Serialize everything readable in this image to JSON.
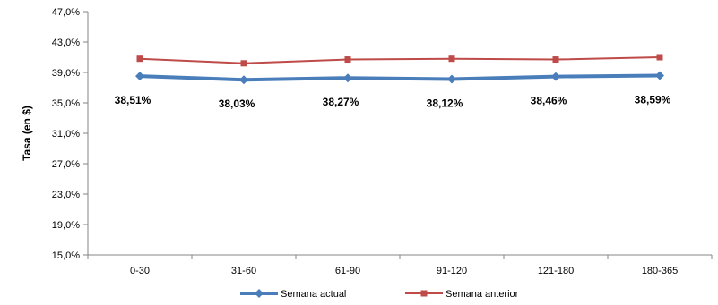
{
  "chart_data": {
    "type": "line",
    "title": "",
    "xlabel": "",
    "ylabel": "Tasa (en $)",
    "categories": [
      "0-30",
      "31-60",
      "61-90",
      "91-120",
      "121-180",
      "180-365"
    ],
    "ylim": [
      15.0,
      47.0
    ],
    "yticks": [
      "15,0%",
      "19,0%",
      "23,0%",
      "27,0%",
      "31,0%",
      "35,0%",
      "39,0%",
      "43,0%",
      "47,0%"
    ],
    "grid": false,
    "legend": "bottom-center",
    "series": [
      {
        "name": "Semana actual",
        "color": "#4A7EBB",
        "marker": "diamond",
        "values": [
          38.51,
          38.03,
          38.27,
          38.12,
          38.46,
          38.59
        ],
        "labels": [
          "38,51%",
          "38,03%",
          "38,27%",
          "38,12%",
          "38,46%",
          "38,59%"
        ]
      },
      {
        "name": "Semana anterior",
        "color": "#BE4B48",
        "marker": "square",
        "values": [
          40.8,
          40.2,
          40.7,
          40.8,
          40.7,
          41.0
        ]
      }
    ]
  }
}
